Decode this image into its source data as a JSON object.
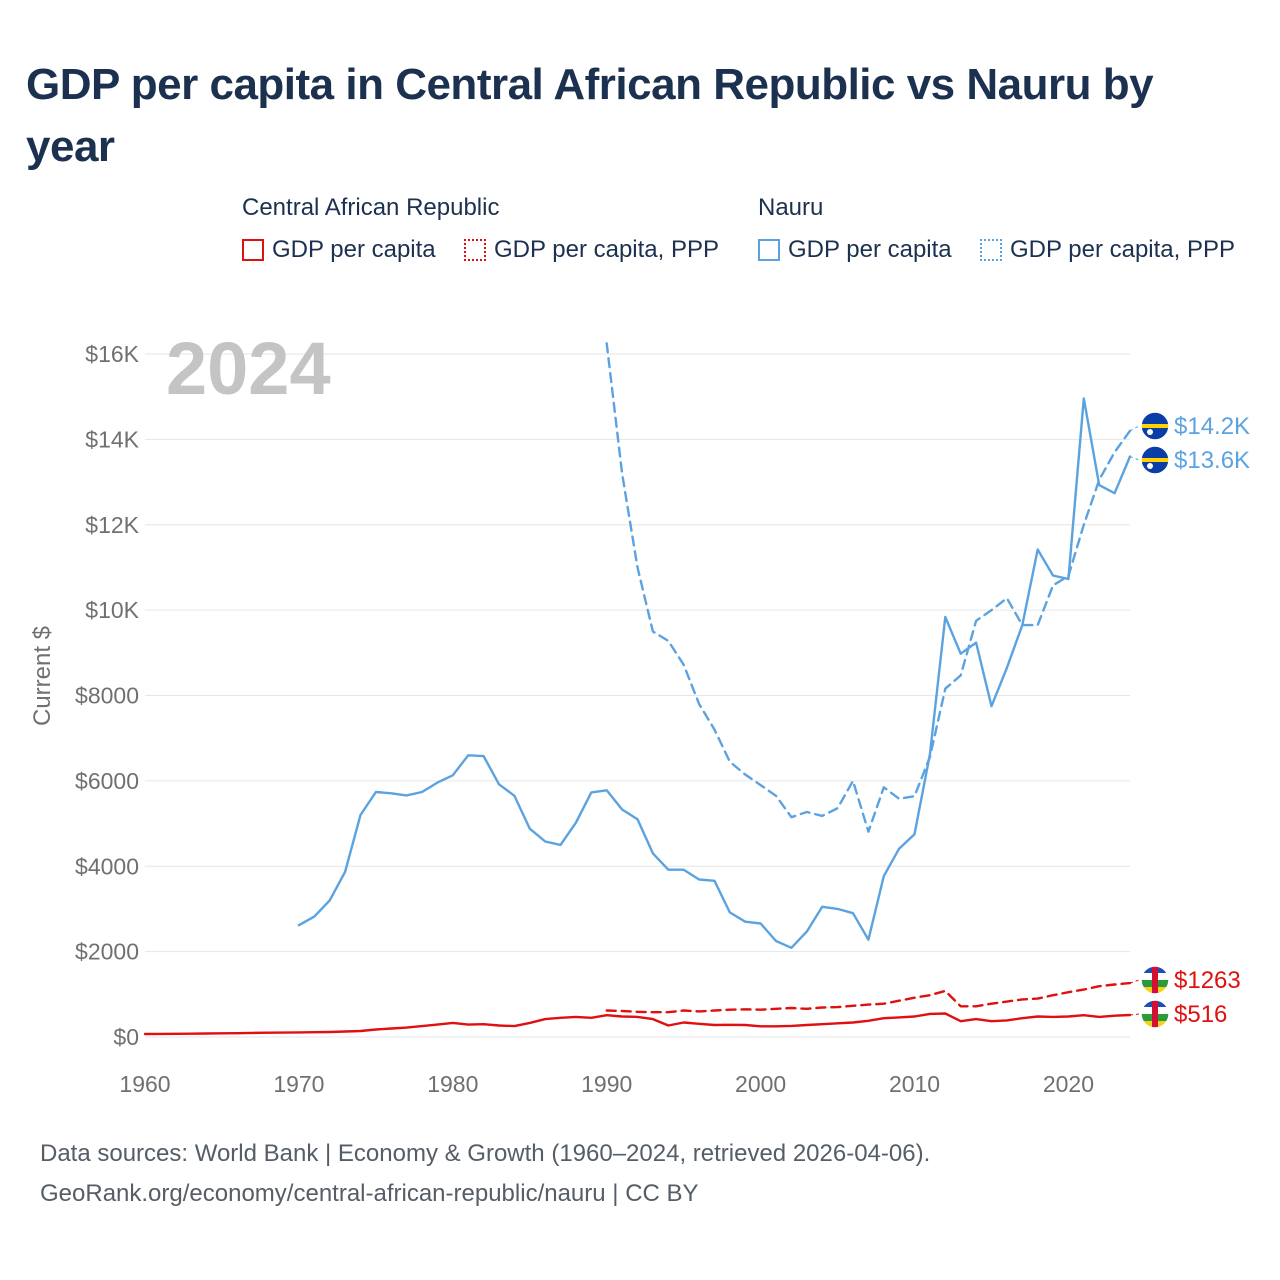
{
  "title": "GDP per capita in Central African Republic vs Nauru by year",
  "legend": {
    "groups": [
      {
        "name": "Central African Republic",
        "items": [
          {
            "label": "GDP per capita",
            "color": "#e01010",
            "style": "solid"
          },
          {
            "label": "GDP per capita, PPP",
            "color": "#e01010",
            "style": "dotted"
          }
        ]
      },
      {
        "name": "Nauru",
        "items": [
          {
            "label": "GDP per capita",
            "color": "#5ba3e0",
            "style": "solid"
          },
          {
            "label": "GDP per capita, PPP",
            "color": "#5ba3e0",
            "style": "dotted"
          }
        ]
      }
    ]
  },
  "year_badge": "2024",
  "chart_data": {
    "type": "line",
    "ylabel": "Current $",
    "xlim": [
      1960,
      2024
    ],
    "ylim": [
      0,
      16000
    ],
    "grid": true,
    "x_ticks": [
      "1960",
      "1970",
      "1980",
      "1990",
      "2000",
      "2010",
      "2020"
    ],
    "y_ticks": [
      "$0",
      "$2000",
      "$4000",
      "$6000",
      "$8000",
      "$10K",
      "$12K",
      "$14K",
      "$16K"
    ],
    "series": [
      {
        "name": "Central African Republic GDP per capita",
        "country": "Central African Republic",
        "metric": "GDP per capita",
        "color": "#e01010",
        "dash": "solid",
        "end_label": "$516",
        "points": [
          [
            1960,
            70
          ],
          [
            1961,
            72
          ],
          [
            1962,
            75
          ],
          [
            1963,
            78
          ],
          [
            1964,
            82
          ],
          [
            1965,
            86
          ],
          [
            1966,
            90
          ],
          [
            1967,
            95
          ],
          [
            1968,
            100
          ],
          [
            1969,
            104
          ],
          [
            1970,
            108
          ],
          [
            1971,
            112
          ],
          [
            1972,
            118
          ],
          [
            1973,
            128
          ],
          [
            1974,
            140
          ],
          [
            1975,
            175
          ],
          [
            1976,
            200
          ],
          [
            1977,
            220
          ],
          [
            1978,
            255
          ],
          [
            1979,
            290
          ],
          [
            1980,
            330
          ],
          [
            1981,
            290
          ],
          [
            1982,
            300
          ],
          [
            1983,
            270
          ],
          [
            1984,
            255
          ],
          [
            1985,
            330
          ],
          [
            1986,
            420
          ],
          [
            1987,
            450
          ],
          [
            1988,
            470
          ],
          [
            1989,
            450
          ],
          [
            1990,
            510
          ],
          [
            1991,
            480
          ],
          [
            1992,
            470
          ],
          [
            1993,
            420
          ],
          [
            1994,
            270
          ],
          [
            1995,
            340
          ],
          [
            1996,
            310
          ],
          [
            1997,
            280
          ],
          [
            1998,
            285
          ],
          [
            1999,
            280
          ],
          [
            2000,
            250
          ],
          [
            2001,
            250
          ],
          [
            2002,
            260
          ],
          [
            2003,
            280
          ],
          [
            2004,
            300
          ],
          [
            2005,
            320
          ],
          [
            2006,
            340
          ],
          [
            2007,
            380
          ],
          [
            2008,
            440
          ],
          [
            2009,
            460
          ],
          [
            2010,
            480
          ],
          [
            2011,
            540
          ],
          [
            2012,
            550
          ],
          [
            2013,
            370
          ],
          [
            2014,
            420
          ],
          [
            2015,
            370
          ],
          [
            2016,
            390
          ],
          [
            2017,
            440
          ],
          [
            2018,
            480
          ],
          [
            2019,
            470
          ],
          [
            2020,
            480
          ],
          [
            2021,
            510
          ],
          [
            2022,
            470
          ],
          [
            2023,
            500
          ],
          [
            2024,
            516
          ]
        ]
      },
      {
        "name": "Central African Republic GDP per capita, PPP",
        "country": "Central African Republic",
        "metric": "GDP per capita, PPP",
        "color": "#e01010",
        "dash": "dashed",
        "end_label": "$1263",
        "points": [
          [
            1990,
            620
          ],
          [
            1991,
            610
          ],
          [
            1992,
            590
          ],
          [
            1993,
            580
          ],
          [
            1994,
            580
          ],
          [
            1995,
            620
          ],
          [
            1996,
            600
          ],
          [
            1997,
            620
          ],
          [
            1998,
            640
          ],
          [
            1999,
            650
          ],
          [
            2000,
            640
          ],
          [
            2001,
            660
          ],
          [
            2002,
            680
          ],
          [
            2003,
            660
          ],
          [
            2004,
            690
          ],
          [
            2005,
            700
          ],
          [
            2006,
            730
          ],
          [
            2007,
            760
          ],
          [
            2008,
            780
          ],
          [
            2009,
            850
          ],
          [
            2010,
            920
          ],
          [
            2011,
            980
          ],
          [
            2012,
            1080
          ],
          [
            2013,
            720
          ],
          [
            2014,
            720
          ],
          [
            2015,
            780
          ],
          [
            2016,
            830
          ],
          [
            2017,
            880
          ],
          [
            2018,
            900
          ],
          [
            2019,
            980
          ],
          [
            2020,
            1050
          ],
          [
            2021,
            1110
          ],
          [
            2022,
            1190
          ],
          [
            2023,
            1230
          ],
          [
            2024,
            1263
          ]
        ]
      },
      {
        "name": "Nauru GDP per capita",
        "country": "Nauru",
        "metric": "GDP per capita",
        "color": "#5ba3e0",
        "dash": "solid",
        "end_label": "$13.6K",
        "points": [
          [
            1970,
            2620
          ],
          [
            1971,
            2820
          ],
          [
            1972,
            3200
          ],
          [
            1973,
            3870
          ],
          [
            1974,
            5200
          ],
          [
            1975,
            5740
          ],
          [
            1976,
            5710
          ],
          [
            1977,
            5660
          ],
          [
            1978,
            5740
          ],
          [
            1979,
            5960
          ],
          [
            1980,
            6130
          ],
          [
            1981,
            6600
          ],
          [
            1982,
            6580
          ],
          [
            1983,
            5920
          ],
          [
            1984,
            5650
          ],
          [
            1985,
            4880
          ],
          [
            1986,
            4580
          ],
          [
            1987,
            4500
          ],
          [
            1988,
            5020
          ],
          [
            1989,
            5730
          ],
          [
            1990,
            5780
          ],
          [
            1991,
            5330
          ],
          [
            1992,
            5100
          ],
          [
            1993,
            4300
          ],
          [
            1994,
            3920
          ],
          [
            1995,
            3920
          ],
          [
            1996,
            3690
          ],
          [
            1997,
            3660
          ],
          [
            1998,
            2920
          ],
          [
            1999,
            2700
          ],
          [
            2000,
            2660
          ],
          [
            2001,
            2250
          ],
          [
            2002,
            2090
          ],
          [
            2003,
            2470
          ],
          [
            2004,
            3050
          ],
          [
            2005,
            3000
          ],
          [
            2006,
            2900
          ],
          [
            2007,
            2280
          ],
          [
            2008,
            3770
          ],
          [
            2009,
            4410
          ],
          [
            2010,
            4750
          ],
          [
            2011,
            6620
          ],
          [
            2012,
            9840
          ],
          [
            2013,
            8980
          ],
          [
            2014,
            9240
          ],
          [
            2015,
            7750
          ],
          [
            2016,
            8650
          ],
          [
            2017,
            9650
          ],
          [
            2018,
            11420
          ],
          [
            2019,
            10810
          ],
          [
            2020,
            10730
          ],
          [
            2021,
            14960
          ],
          [
            2022,
            12930
          ],
          [
            2023,
            12740
          ],
          [
            2024,
            13600
          ]
        ]
      },
      {
        "name": "Nauru GDP per capita, PPP",
        "country": "Nauru",
        "metric": "GDP per capita, PPP",
        "color": "#5ba3e0",
        "dash": "dashed",
        "end_label": "$14.2K",
        "points": [
          [
            1990,
            16250
          ],
          [
            1991,
            13200
          ],
          [
            1992,
            11000
          ],
          [
            1993,
            9500
          ],
          [
            1994,
            9280
          ],
          [
            1995,
            8720
          ],
          [
            1996,
            7800
          ],
          [
            1997,
            7200
          ],
          [
            1998,
            6450
          ],
          [
            1999,
            6150
          ],
          [
            2000,
            5900
          ],
          [
            2001,
            5650
          ],
          [
            2002,
            5150
          ],
          [
            2003,
            5270
          ],
          [
            2004,
            5180
          ],
          [
            2005,
            5360
          ],
          [
            2006,
            6000
          ],
          [
            2007,
            4810
          ],
          [
            2008,
            5850
          ],
          [
            2009,
            5580
          ],
          [
            2010,
            5640
          ],
          [
            2011,
            6560
          ],
          [
            2012,
            8160
          ],
          [
            2013,
            8470
          ],
          [
            2014,
            9750
          ],
          [
            2015,
            10000
          ],
          [
            2016,
            10280
          ],
          [
            2017,
            9650
          ],
          [
            2018,
            9650
          ],
          [
            2019,
            10580
          ],
          [
            2020,
            10800
          ],
          [
            2021,
            12000
          ],
          [
            2022,
            13050
          ],
          [
            2023,
            13700
          ],
          [
            2024,
            14200
          ]
        ]
      }
    ]
  },
  "footer": {
    "line1": "Data sources: World Bank | Economy & Growth (1960–2024, retrieved 2026-04-06).",
    "line2": "GeoRank.org/economy/central-african-republic/nauru | CC BY"
  }
}
